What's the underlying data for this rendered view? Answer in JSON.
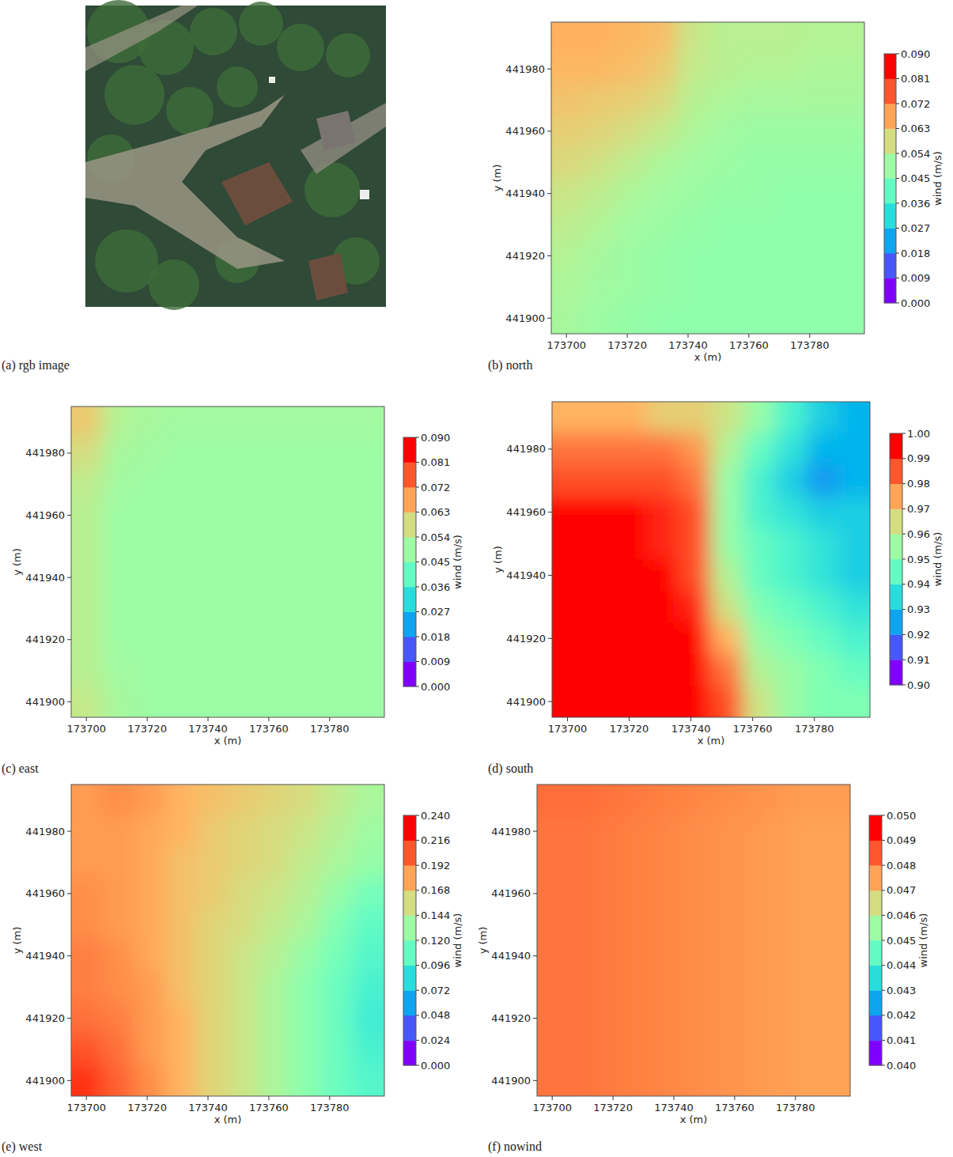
{
  "image": {
    "caption": "(a) rgb image"
  },
  "chart_data": [
    {
      "type": "heatmap",
      "title": "(b) north",
      "x_label": "x (m)",
      "y_label": "y (m)",
      "xlim": [
        173695,
        173798
      ],
      "ylim": [
        441895,
        441995
      ],
      "xticks": [
        173700,
        173720,
        173740,
        173760,
        173780
      ],
      "yticks": [
        441900,
        441920,
        441940,
        441960,
        441980
      ],
      "colorbar_label": "wind (m/s)",
      "colorbar_range": [
        0,
        0.09
      ],
      "colorbar_ticks": [
        {
          "value": 0,
          "label": "0.000"
        },
        {
          "value": 0.009,
          "label": "0.009"
        },
        {
          "value": 0.018,
          "label": "0.018"
        },
        {
          "value": 0.027,
          "label": "0.027"
        },
        {
          "value": 0.036,
          "label": "0.036"
        },
        {
          "value": 0.045,
          "label": "0.045"
        },
        {
          "value": 0.054,
          "label": "0.054"
        },
        {
          "value": 0.063,
          "label": "0.063"
        },
        {
          "value": 0.072,
          "label": "0.072"
        },
        {
          "value": 0.081,
          "label": "0.081"
        },
        {
          "value": 0.09,
          "label": "0.090"
        }
      ],
      "cells": [
        [
          0.068,
          0.068,
          0.067,
          0.066,
          0.058,
          0.055,
          0.055,
          0.055,
          0.054,
          0.054
        ],
        [
          0.067,
          0.067,
          0.066,
          0.064,
          0.057,
          0.055,
          0.054,
          0.054,
          0.053,
          0.053
        ],
        [
          0.065,
          0.064,
          0.063,
          0.061,
          0.055,
          0.053,
          0.052,
          0.052,
          0.052,
          0.052
        ],
        [
          0.063,
          0.062,
          0.06,
          0.057,
          0.053,
          0.051,
          0.05,
          0.05,
          0.05,
          0.05
        ],
        [
          0.061,
          0.059,
          0.056,
          0.053,
          0.051,
          0.05,
          0.049,
          0.049,
          0.049,
          0.049
        ],
        [
          0.058,
          0.056,
          0.053,
          0.051,
          0.05,
          0.049,
          0.049,
          0.048,
          0.048,
          0.048
        ],
        [
          0.056,
          0.054,
          0.051,
          0.05,
          0.049,
          0.048,
          0.048,
          0.048,
          0.048,
          0.048
        ],
        [
          0.054,
          0.052,
          0.05,
          0.049,
          0.048,
          0.048,
          0.048,
          0.048,
          0.048,
          0.048
        ],
        [
          0.053,
          0.051,
          0.05,
          0.049,
          0.048,
          0.048,
          0.048,
          0.048,
          0.048,
          0.048
        ],
        [
          0.052,
          0.05,
          0.049,
          0.048,
          0.048,
          0.048,
          0.048,
          0.048,
          0.048,
          0.048
        ]
      ]
    },
    {
      "type": "heatmap",
      "title": "(c) east",
      "x_label": "x (m)",
      "y_label": "y (m)",
      "xlim": [
        173695,
        173798
      ],
      "ylim": [
        441895,
        441995
      ],
      "xticks": [
        173700,
        173720,
        173740,
        173760,
        173780
      ],
      "yticks": [
        441900,
        441920,
        441940,
        441960,
        441980
      ],
      "colorbar_label": "wind (m/s)",
      "colorbar_range": [
        0,
        0.09
      ],
      "colorbar_ticks": [
        {
          "value": 0,
          "label": "0.000"
        },
        {
          "value": 0.009,
          "label": "0.009"
        },
        {
          "value": 0.018,
          "label": "0.018"
        },
        {
          "value": 0.027,
          "label": "0.027"
        },
        {
          "value": 0.036,
          "label": "0.036"
        },
        {
          "value": 0.045,
          "label": "0.045"
        },
        {
          "value": 0.054,
          "label": "0.054"
        },
        {
          "value": 0.063,
          "label": "0.063"
        },
        {
          "value": 0.072,
          "label": "0.072"
        },
        {
          "value": 0.081,
          "label": "0.081"
        },
        {
          "value": 0.09,
          "label": "0.090"
        }
      ],
      "cells": [
        [
          0.064,
          0.054,
          0.052,
          0.051,
          0.051,
          0.051,
          0.051,
          0.051,
          0.051,
          0.051
        ],
        [
          0.06,
          0.052,
          0.051,
          0.05,
          0.05,
          0.05,
          0.05,
          0.05,
          0.05,
          0.05
        ],
        [
          0.056,
          0.051,
          0.05,
          0.05,
          0.05,
          0.05,
          0.05,
          0.05,
          0.05,
          0.05
        ],
        [
          0.055,
          0.05,
          0.05,
          0.05,
          0.05,
          0.05,
          0.05,
          0.05,
          0.05,
          0.05
        ],
        [
          0.055,
          0.05,
          0.05,
          0.05,
          0.05,
          0.05,
          0.05,
          0.05,
          0.05,
          0.05
        ],
        [
          0.055,
          0.05,
          0.05,
          0.05,
          0.05,
          0.05,
          0.05,
          0.05,
          0.05,
          0.05
        ],
        [
          0.055,
          0.05,
          0.05,
          0.05,
          0.05,
          0.05,
          0.05,
          0.05,
          0.05,
          0.05
        ],
        [
          0.055,
          0.05,
          0.05,
          0.05,
          0.05,
          0.05,
          0.05,
          0.05,
          0.05,
          0.05
        ],
        [
          0.055,
          0.051,
          0.05,
          0.05,
          0.05,
          0.05,
          0.05,
          0.05,
          0.05,
          0.05
        ],
        [
          0.057,
          0.052,
          0.05,
          0.05,
          0.05,
          0.05,
          0.05,
          0.05,
          0.05,
          0.05
        ]
      ]
    },
    {
      "type": "heatmap",
      "title": "(d) south",
      "x_label": "x (m)",
      "y_label": "y (m)",
      "xlim": [
        173695,
        173798
      ],
      "ylim": [
        441895,
        441995
      ],
      "xticks": [
        173700,
        173720,
        173740,
        173760,
        173780
      ],
      "yticks": [
        441900,
        441920,
        441940,
        441960,
        441980
      ],
      "colorbar_label": "wind (m/s)",
      "colorbar_range": [
        0.9,
        1.0
      ],
      "colorbar_ticks": [
        {
          "value": 0.9,
          "label": "0.90"
        },
        {
          "value": 0.91,
          "label": "0.91"
        },
        {
          "value": 0.92,
          "label": "0.92"
        },
        {
          "value": 0.93,
          "label": "0.93"
        },
        {
          "value": 0.94,
          "label": "0.94"
        },
        {
          "value": 0.95,
          "label": "0.95"
        },
        {
          "value": 0.96,
          "label": "0.96"
        },
        {
          "value": 0.97,
          "label": "0.97"
        },
        {
          "value": 0.98,
          "label": "0.98"
        },
        {
          "value": 0.99,
          "label": "0.99"
        },
        {
          "value": 1.0,
          "label": "1.00"
        }
      ],
      "cells": [
        [
          0.975,
          0.975,
          0.975,
          0.97,
          0.97,
          0.965,
          0.955,
          0.94,
          0.93,
          0.925
        ],
        [
          0.985,
          0.985,
          0.985,
          0.985,
          0.98,
          0.96,
          0.945,
          0.935,
          0.925,
          0.925
        ],
        [
          0.99,
          0.99,
          0.99,
          0.99,
          0.985,
          0.955,
          0.94,
          0.93,
          0.92,
          0.925
        ],
        [
          1.0,
          1.0,
          1.0,
          0.995,
          0.99,
          0.955,
          0.94,
          0.935,
          0.93,
          0.93
        ],
        [
          1.0,
          1.0,
          1.0,
          0.995,
          0.99,
          0.955,
          0.945,
          0.94,
          0.935,
          0.93
        ],
        [
          1.0,
          1.0,
          1.0,
          1.0,
          0.99,
          0.96,
          0.945,
          0.94,
          0.935,
          0.93
        ],
        [
          1.0,
          1.0,
          1.0,
          1.0,
          0.995,
          0.965,
          0.95,
          0.945,
          0.94,
          0.935
        ],
        [
          1.0,
          1.0,
          1.0,
          1.0,
          1.0,
          0.975,
          0.955,
          0.95,
          0.945,
          0.94
        ],
        [
          1.0,
          1.0,
          1.0,
          1.0,
          1.0,
          0.985,
          0.96,
          0.955,
          0.95,
          0.945
        ],
        [
          1.0,
          1.0,
          1.0,
          1.0,
          1.0,
          0.99,
          0.965,
          0.955,
          0.95,
          0.95
        ]
      ]
    },
    {
      "type": "heatmap",
      "title": "(e) west",
      "x_label": "x (m)",
      "y_label": "y (m)",
      "xlim": [
        173695,
        173798
      ],
      "ylim": [
        441895,
        441995
      ],
      "xticks": [
        173700,
        173720,
        173740,
        173760,
        173780
      ],
      "yticks": [
        441900,
        441920,
        441940,
        441960,
        441980
      ],
      "colorbar_label": "wind (m/s)",
      "colorbar_range": [
        0,
        0.24
      ],
      "colorbar_ticks": [
        {
          "value": 0,
          "label": "0.000"
        },
        {
          "value": 0.024,
          "label": "0.024"
        },
        {
          "value": 0.048,
          "label": "0.048"
        },
        {
          "value": 0.072,
          "label": "0.072"
        },
        {
          "value": 0.096,
          "label": "0.096"
        },
        {
          "value": 0.12,
          "label": "0.120"
        },
        {
          "value": 0.144,
          "label": "0.144"
        },
        {
          "value": 0.168,
          "label": "0.168"
        },
        {
          "value": 0.192,
          "label": "0.192"
        },
        {
          "value": 0.216,
          "label": "0.216"
        },
        {
          "value": 0.24,
          "label": "0.240"
        }
      ],
      "cells": [
        [
          0.19,
          0.195,
          0.19,
          0.18,
          0.175,
          0.17,
          0.165,
          0.16,
          0.15,
          0.14
        ],
        [
          0.19,
          0.19,
          0.185,
          0.18,
          0.17,
          0.165,
          0.16,
          0.155,
          0.145,
          0.135
        ],
        [
          0.19,
          0.19,
          0.185,
          0.175,
          0.17,
          0.165,
          0.16,
          0.15,
          0.14,
          0.13
        ],
        [
          0.195,
          0.19,
          0.185,
          0.175,
          0.17,
          0.16,
          0.155,
          0.145,
          0.13,
          0.115
        ],
        [
          0.195,
          0.19,
          0.185,
          0.175,
          0.165,
          0.16,
          0.15,
          0.14,
          0.12,
          0.105
        ],
        [
          0.2,
          0.195,
          0.185,
          0.175,
          0.165,
          0.155,
          0.145,
          0.13,
          0.115,
          0.1
        ],
        [
          0.2,
          0.195,
          0.19,
          0.175,
          0.165,
          0.155,
          0.14,
          0.125,
          0.11,
          0.095
        ],
        [
          0.205,
          0.2,
          0.19,
          0.18,
          0.165,
          0.155,
          0.14,
          0.125,
          0.11,
          0.09
        ],
        [
          0.215,
          0.205,
          0.19,
          0.18,
          0.165,
          0.155,
          0.14,
          0.125,
          0.11,
          0.095
        ],
        [
          0.225,
          0.21,
          0.195,
          0.18,
          0.165,
          0.155,
          0.14,
          0.125,
          0.11,
          0.1
        ]
      ]
    },
    {
      "type": "heatmap",
      "title": "(f) nowind",
      "x_label": "x (m)",
      "y_label": "y (m)",
      "xlim": [
        173695,
        173798
      ],
      "ylim": [
        441895,
        441995
      ],
      "xticks": [
        173700,
        173720,
        173740,
        173760,
        173780
      ],
      "yticks": [
        441900,
        441920,
        441940,
        441960,
        441980
      ],
      "colorbar_label": "wind (m/s)",
      "colorbar_range": [
        0.04,
        0.05
      ],
      "colorbar_ticks": [
        {
          "value": 0.04,
          "label": "0.040"
        },
        {
          "value": 0.041,
          "label": "0.041"
        },
        {
          "value": 0.042,
          "label": "0.042"
        },
        {
          "value": 0.043,
          "label": "0.043"
        },
        {
          "value": 0.044,
          "label": "0.044"
        },
        {
          "value": 0.045,
          "label": "0.045"
        },
        {
          "value": 0.046,
          "label": "0.046"
        },
        {
          "value": 0.047,
          "label": "0.047"
        },
        {
          "value": 0.048,
          "label": "0.048"
        },
        {
          "value": 0.049,
          "label": "0.049"
        },
        {
          "value": 0.05,
          "label": "0.050"
        }
      ],
      "cells": [
        [
          0.0486,
          0.0486,
          0.0485,
          0.0484,
          0.0483,
          0.0482,
          0.0481,
          0.048,
          0.0479,
          0.0479
        ],
        [
          0.0485,
          0.0485,
          0.0484,
          0.0483,
          0.0482,
          0.0481,
          0.048,
          0.0479,
          0.0478,
          0.0478
        ],
        [
          0.0485,
          0.0485,
          0.0484,
          0.0483,
          0.0482,
          0.0481,
          0.048,
          0.0479,
          0.0478,
          0.0478
        ],
        [
          0.0485,
          0.0485,
          0.0484,
          0.0483,
          0.0482,
          0.0481,
          0.048,
          0.0479,
          0.0478,
          0.0478
        ],
        [
          0.0485,
          0.0485,
          0.0484,
          0.0483,
          0.0482,
          0.0481,
          0.048,
          0.0479,
          0.0478,
          0.0478
        ],
        [
          0.0485,
          0.0485,
          0.0484,
          0.0483,
          0.0482,
          0.0481,
          0.048,
          0.0479,
          0.0478,
          0.0478
        ],
        [
          0.0485,
          0.0485,
          0.0484,
          0.0483,
          0.0482,
          0.0481,
          0.048,
          0.0479,
          0.0478,
          0.0478
        ],
        [
          0.0485,
          0.0485,
          0.0484,
          0.0483,
          0.0482,
          0.0481,
          0.048,
          0.0479,
          0.0478,
          0.0478
        ],
        [
          0.0485,
          0.0485,
          0.0484,
          0.0483,
          0.0482,
          0.0481,
          0.048,
          0.0479,
          0.0478,
          0.0478
        ],
        [
          0.0485,
          0.0485,
          0.0484,
          0.0483,
          0.0482,
          0.0481,
          0.048,
          0.0479,
          0.0478,
          0.0478
        ]
      ]
    }
  ]
}
